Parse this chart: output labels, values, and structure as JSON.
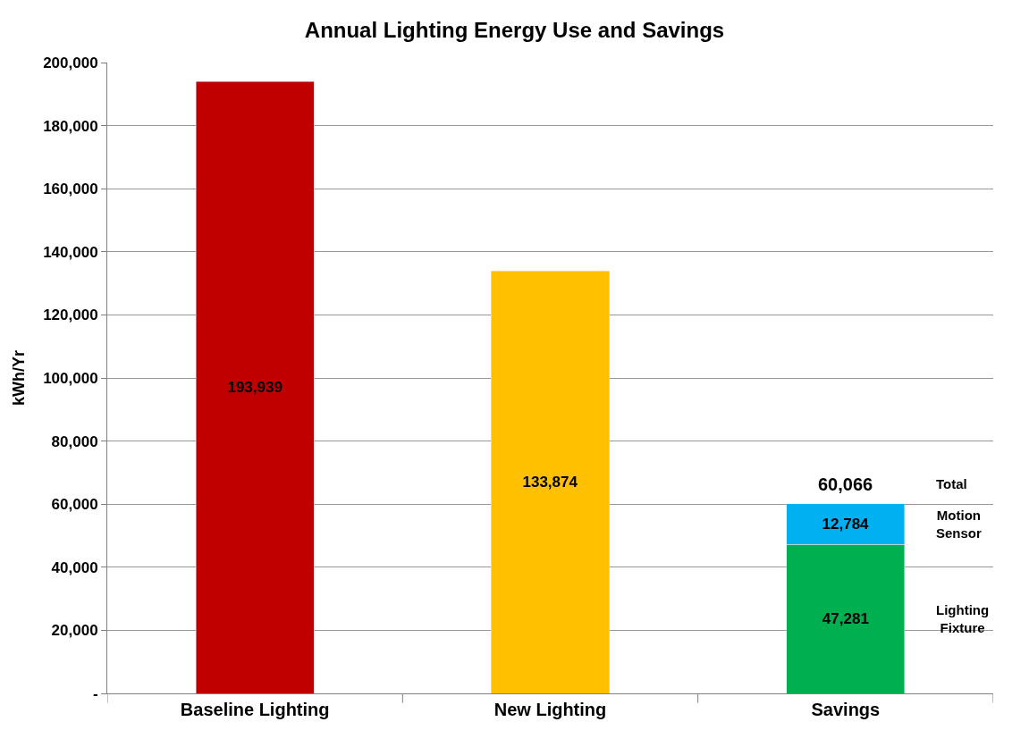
{
  "chart_data": {
    "type": "bar",
    "title": "Annual Lighting Energy Use and Savings",
    "ylabel": "kWh/Yr",
    "categories": [
      "Baseline Lighting",
      "New Lighting",
      "Savings"
    ],
    "stacked": true,
    "totals": [
      null,
      null,
      "60,066"
    ],
    "annotations": [
      "Total"
    ],
    "series": [
      {
        "color": "#c00000",
        "values": [
          193939,
          null,
          null
        ],
        "value_labels": [
          "193,939",
          null,
          null
        ]
      },
      {
        "color": "#ffc000",
        "values": [
          null,
          133874,
          null
        ],
        "value_labels": [
          null,
          "133,874",
          null
        ]
      },
      {
        "name": "Lighting Fixture",
        "color": "#00b050",
        "values": [
          null,
          null,
          47281
        ],
        "value_labels": [
          null,
          null,
          "47,281"
        ]
      },
      {
        "name": "Motion Sensor",
        "color": "#00b0f0",
        "values": [
          null,
          null,
          12784
        ],
        "value_labels": [
          null,
          null,
          "12,784"
        ]
      }
    ],
    "ylim": [
      0,
      200000
    ],
    "yticks": [
      {
        "value": 0,
        "label": "-"
      },
      {
        "value": 20000,
        "label": "20,000"
      },
      {
        "value": 40000,
        "label": "40,000"
      },
      {
        "value": 60000,
        "label": "60,000"
      },
      {
        "value": 80000,
        "label": "80,000"
      },
      {
        "value": 100000,
        "label": "100,000"
      },
      {
        "value": 120000,
        "label": "120,000"
      },
      {
        "value": 140000,
        "label": "140,000"
      },
      {
        "value": 160000,
        "label": "160,000"
      },
      {
        "value": 180000,
        "label": "180,000"
      },
      {
        "value": 200000,
        "label": "200,000"
      }
    ],
    "grid": "y",
    "legend": false
  }
}
